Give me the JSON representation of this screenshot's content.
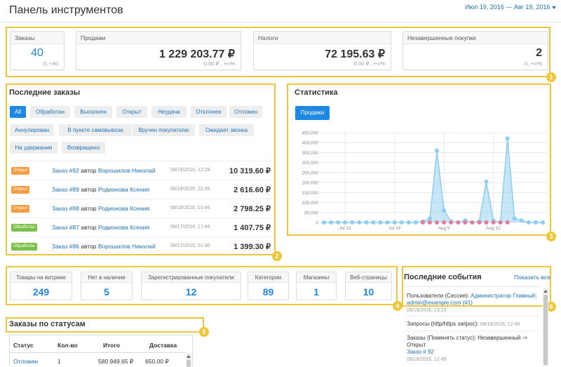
{
  "header": {
    "title": "Панель инструментов",
    "date_range": "Июл 19, 2016 — Авг 19, 2016"
  },
  "kpis": [
    {
      "label": "Заказы",
      "value": "40",
      "sub": "0, +40"
    },
    {
      "label": "Продажи",
      "value": "1 229 203.77 ₽",
      "sub": "0.00 ₽ , +∞%"
    },
    {
      "label": "Налоги",
      "value": "72 195.63 ₽",
      "sub": "0.00 ₽ , +∞%"
    },
    {
      "label": "Незавершенные покупки",
      "value": "2",
      "sub": "0, +∞%"
    }
  ],
  "badges": [
    "1",
    "2",
    "3",
    "4",
    "5",
    "6"
  ],
  "recent_orders": {
    "title": "Последние заказы",
    "filters": [
      "All",
      "Обработан",
      "Выполнен",
      "Открыт",
      "Неудача",
      "Отклонен",
      "Отложен",
      "Аннулирован",
      "В пункте самовывоза",
      "Вручен покупателю",
      "Ожидает звонка",
      "На удержании",
      "Возвращено"
    ],
    "rows": [
      {
        "status": "Открыт",
        "order": "Заказ #92",
        "by": "автор",
        "customer": "Ворошилов Николай",
        "date": "08/19/2016, 12:29",
        "amount": "10 319.60 ₽",
        "color": "orange"
      },
      {
        "status": "Открыт",
        "order": "Заказ #89",
        "by": "автор",
        "customer": "Родионова Ксения",
        "date": "08/18/2016, 22:36",
        "amount": "2 616.60 ₽",
        "color": "orange"
      },
      {
        "status": "Открыт",
        "order": "Заказ #88",
        "by": "автор",
        "customer": "Родионова Ксения",
        "date": "08/18/2016, 03:46",
        "amount": "2 798.25 ₽",
        "color": "orange"
      },
      {
        "status": "Обработан",
        "order": "Заказ #87",
        "by": "автор",
        "customer": "Родионова Ксения",
        "date": "08/17/2016, 17:44",
        "amount": "1 407.75 ₽",
        "color": "green"
      },
      {
        "status": "Обработан",
        "order": "Заказ #86",
        "by": "автор",
        "customer": "Ворошилов Николай",
        "date": "08/17/2016, 01:40",
        "amount": "1 399.30 ₽",
        "color": "green"
      }
    ]
  },
  "statistics": {
    "title": "Статистика",
    "tab": "Продажи"
  },
  "chart_data": {
    "type": "area",
    "title": "",
    "xlabel": "",
    "ylabel": "",
    "ylim": [
      0,
      450000
    ],
    "yticks": [
      "0",
      "50,000",
      "100,000",
      "150,000",
      "200,000",
      "250,000",
      "300,000",
      "350,000",
      "400,000",
      "450,000"
    ],
    "xticks": [
      "Jul 22",
      "Jul 29",
      "Aug 5",
      "Aug 12"
    ],
    "x": [
      "Jul 19",
      "Jul 20",
      "Jul 21",
      "Jul 22",
      "Jul 23",
      "Jul 24",
      "Jul 25",
      "Jul 26",
      "Jul 27",
      "Jul 28",
      "Jul 29",
      "Jul 30",
      "Jul 31",
      "Aug 1",
      "Aug 2",
      "Aug 3",
      "Aug 4",
      "Aug 5",
      "Aug 6",
      "Aug 7",
      "Aug 8",
      "Aug 9",
      "Aug 10",
      "Aug 11",
      "Aug 12",
      "Aug 13",
      "Aug 14",
      "Aug 15",
      "Aug 16",
      "Aug 17",
      "Aug 18",
      "Aug 19"
    ],
    "series": [
      {
        "name": "",
        "color": "#8fcdf2",
        "values": [
          0,
          0,
          0,
          0,
          0,
          0,
          0,
          0,
          0,
          0,
          0,
          0,
          0,
          0,
          5000,
          20000,
          360000,
          60000,
          5000,
          0,
          10000,
          0,
          5000,
          205000,
          10000,
          0,
          420000,
          20000,
          10000,
          0,
          0,
          0
        ]
      },
      {
        "name": "",
        "color": "#e57a9a",
        "values": [
          0,
          0,
          0,
          0,
          0,
          0,
          0,
          0,
          0,
          0,
          0,
          0,
          0,
          0,
          0,
          0,
          0,
          0,
          0,
          0,
          0,
          0,
          0,
          0,
          0,
          0,
          0,
          0,
          0,
          0,
          0,
          0
        ]
      }
    ],
    "grid": true
  },
  "store_stats": [
    {
      "label": "Товары на витрине",
      "value": "249"
    },
    {
      "label": "Нет в наличии",
      "value": "5"
    },
    {
      "label": "Зарегистрированные покупатели",
      "value": "12"
    },
    {
      "label": "Категории",
      "value": "89"
    },
    {
      "label": "Магазины",
      "value": "1"
    },
    {
      "label": "Веб-страницы",
      "value": "10"
    }
  ],
  "events": {
    "title": "Последние события",
    "show_all": "Показать все",
    "items": [
      {
        "text": "Пользователи (Сессия):",
        "link": "Администратор Главный; admin@example.com (#1)",
        "date": "08/19/2016, 13:15"
      },
      {
        "text": "Запросы (http/https запрос):",
        "link": "",
        "date": "08/19/2016, 12:49"
      },
      {
        "text": "Заказы (Поменять статус): Незавершенный -> Открыт",
        "link": "Заказ # 92",
        "date": "08/19/2016, 12:49"
      }
    ]
  },
  "orders_by_status": {
    "title": "Заказы по статусам",
    "columns": [
      "Статус",
      "Кол-во",
      "Итого",
      "Доставка"
    ],
    "rows": [
      {
        "status": "Отложен",
        "count": "1",
        "total": "580 949.65 ₽",
        "shipping": "650.00 ₽"
      }
    ]
  }
}
